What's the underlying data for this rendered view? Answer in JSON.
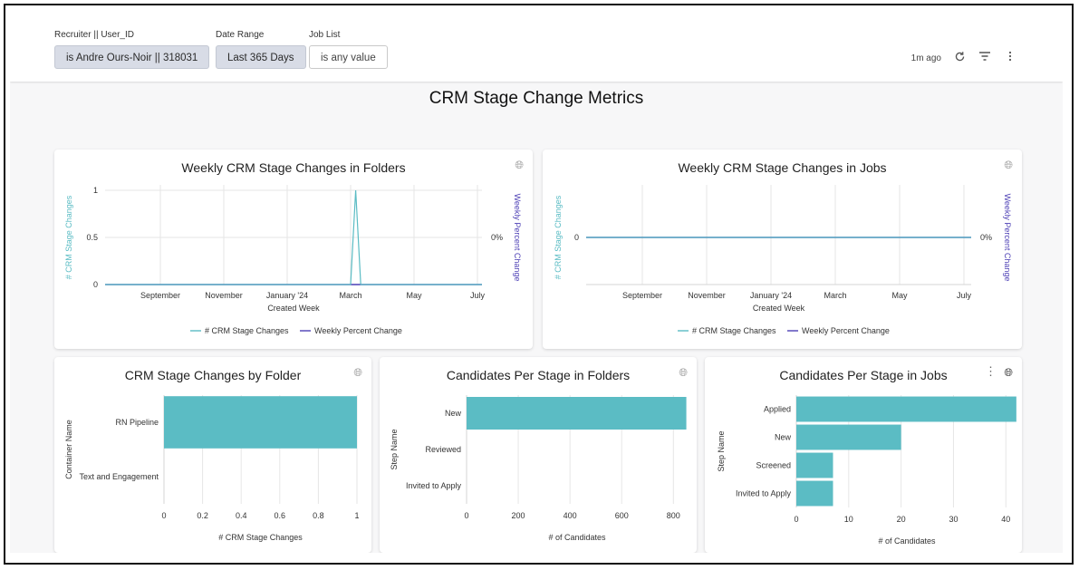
{
  "filters": {
    "recruiter": {
      "label": "Recruiter || User_ID",
      "value": "is Andre Ours-Noir || 318031"
    },
    "date_range": {
      "label": "Date Range",
      "value": "Last 365 Days"
    },
    "job_list": {
      "label": "Job List",
      "value": "is any value"
    }
  },
  "controls": {
    "last_updated": "1m ago"
  },
  "dashboard_title": "CRM Stage Change Metrics",
  "colors": {
    "teal": "#5bbcc4",
    "purple": "#4c3fb5",
    "grid": "#e6e6e6"
  },
  "chart_data": [
    {
      "id": "folders_weekly",
      "type": "line",
      "title": "Weekly CRM Stage Changes in Folders",
      "xlabel": "Created Week",
      "ylabel": "# CRM Stage Changes",
      "y2label": "Weekly Percent Change",
      "x_ticks": [
        "September",
        "November",
        "January '24",
        "March",
        "May",
        "July"
      ],
      "y_ticks": [
        "0",
        "0.5",
        "1"
      ],
      "y2_ticks": [
        "0%"
      ],
      "ylim": [
        0,
        1
      ],
      "series": [
        {
          "name": "# CRM Stage Changes",
          "color": "#5bbcc4",
          "x_index": [
            -0.9,
            3.0,
            3.08,
            3.16,
            5.2
          ],
          "values": [
            0,
            0,
            1,
            0,
            0
          ]
        },
        {
          "name": "Weekly Percent Change",
          "color": "#4c3fb5",
          "x_index": [
            -0.9,
            5.2
          ],
          "values": [
            0,
            0
          ]
        }
      ],
      "legend": [
        "# CRM Stage Changes",
        "Weekly Percent Change"
      ]
    },
    {
      "id": "jobs_weekly",
      "type": "line",
      "title": "Weekly CRM Stage Changes in Jobs",
      "xlabel": "Created Week",
      "ylabel": "# CRM Stage Changes",
      "y2label": "Weekly Percent Change",
      "x_ticks": [
        "September",
        "November",
        "January '24",
        "March",
        "May",
        "July"
      ],
      "y_ticks": [
        "0"
      ],
      "y2_ticks": [
        "0%"
      ],
      "series": [
        {
          "name": "# CRM Stage Changes",
          "color": "#5bbcc4",
          "x_index": [
            -0.9,
            5.2
          ],
          "values": [
            0,
            0
          ]
        },
        {
          "name": "Weekly Percent Change",
          "color": "#4c3fb5",
          "x_index": [
            -0.9,
            5.2
          ],
          "values": [
            0,
            0
          ]
        }
      ],
      "legend": [
        "# CRM Stage Changes",
        "Weekly Percent Change"
      ]
    },
    {
      "id": "by_folder",
      "type": "bar",
      "orientation": "horizontal",
      "title": "CRM Stage Changes by Folder",
      "xlabel": "# CRM Stage Changes",
      "ylabel": "Container Name",
      "categories": [
        "RN Pipeline",
        "Text and Engagement"
      ],
      "values": [
        1,
        0
      ],
      "x_ticks": [
        "0",
        "0.2",
        "0.4",
        "0.6",
        "0.8",
        "1"
      ],
      "xlim": [
        0,
        1
      ]
    },
    {
      "id": "per_stage_folders",
      "type": "bar",
      "orientation": "horizontal",
      "title": "Candidates Per Stage in Folders",
      "xlabel": "# of Candidates",
      "ylabel": "Step Name",
      "categories": [
        "New",
        "Reviewed",
        "Invited to Apply"
      ],
      "values": [
        850,
        0,
        0
      ],
      "x_ticks": [
        "0",
        "200",
        "400",
        "600",
        "800"
      ],
      "xlim": [
        0,
        855
      ]
    },
    {
      "id": "per_stage_jobs",
      "type": "bar",
      "orientation": "horizontal",
      "title": "Candidates Per Stage in Jobs",
      "xlabel": "# of Candidates",
      "ylabel": "Step Name",
      "categories": [
        "Applied",
        "New",
        "Screened",
        "Invited to Apply"
      ],
      "values": [
        42,
        20,
        7,
        7
      ],
      "x_ticks": [
        "0",
        "10",
        "20",
        "30",
        "40"
      ],
      "xlim": [
        0,
        42.2
      ]
    }
  ]
}
